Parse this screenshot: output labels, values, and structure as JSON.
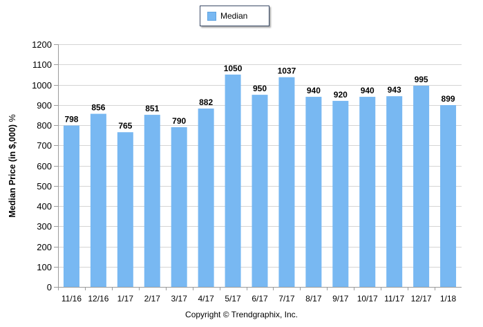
{
  "legend": {
    "label": "Median"
  },
  "y_axis_title": {
    "main": "Median Price (in $,000)",
    "unit": "%"
  },
  "footer": {
    "copyright": "Copyright © Trendgraphix, Inc."
  },
  "colors": {
    "bar": "#78b8f2",
    "grid": "#d4d4d4",
    "text": "#000000"
  },
  "chart_data": {
    "type": "bar",
    "categories": [
      "11/16",
      "12/16",
      "1/17",
      "2/17",
      "3/17",
      "4/17",
      "5/17",
      "6/17",
      "7/17",
      "8/17",
      "9/17",
      "10/17",
      "11/17",
      "12/17",
      "1/18"
    ],
    "series": [
      {
        "name": "Median",
        "values": [
          798,
          856,
          765,
          851,
          790,
          882,
          1050,
          950,
          1037,
          940,
          920,
          940,
          943,
          995,
          899
        ]
      }
    ],
    "ylabel": "Median Price (in $,000) %",
    "xlabel": "",
    "ylim": [
      0,
      1200
    ],
    "yticks": [
      0,
      100,
      200,
      300,
      400,
      500,
      600,
      700,
      800,
      900,
      1000,
      1100,
      1200
    ],
    "grid": true,
    "legend_position": "top-center",
    "data_labels": true
  }
}
